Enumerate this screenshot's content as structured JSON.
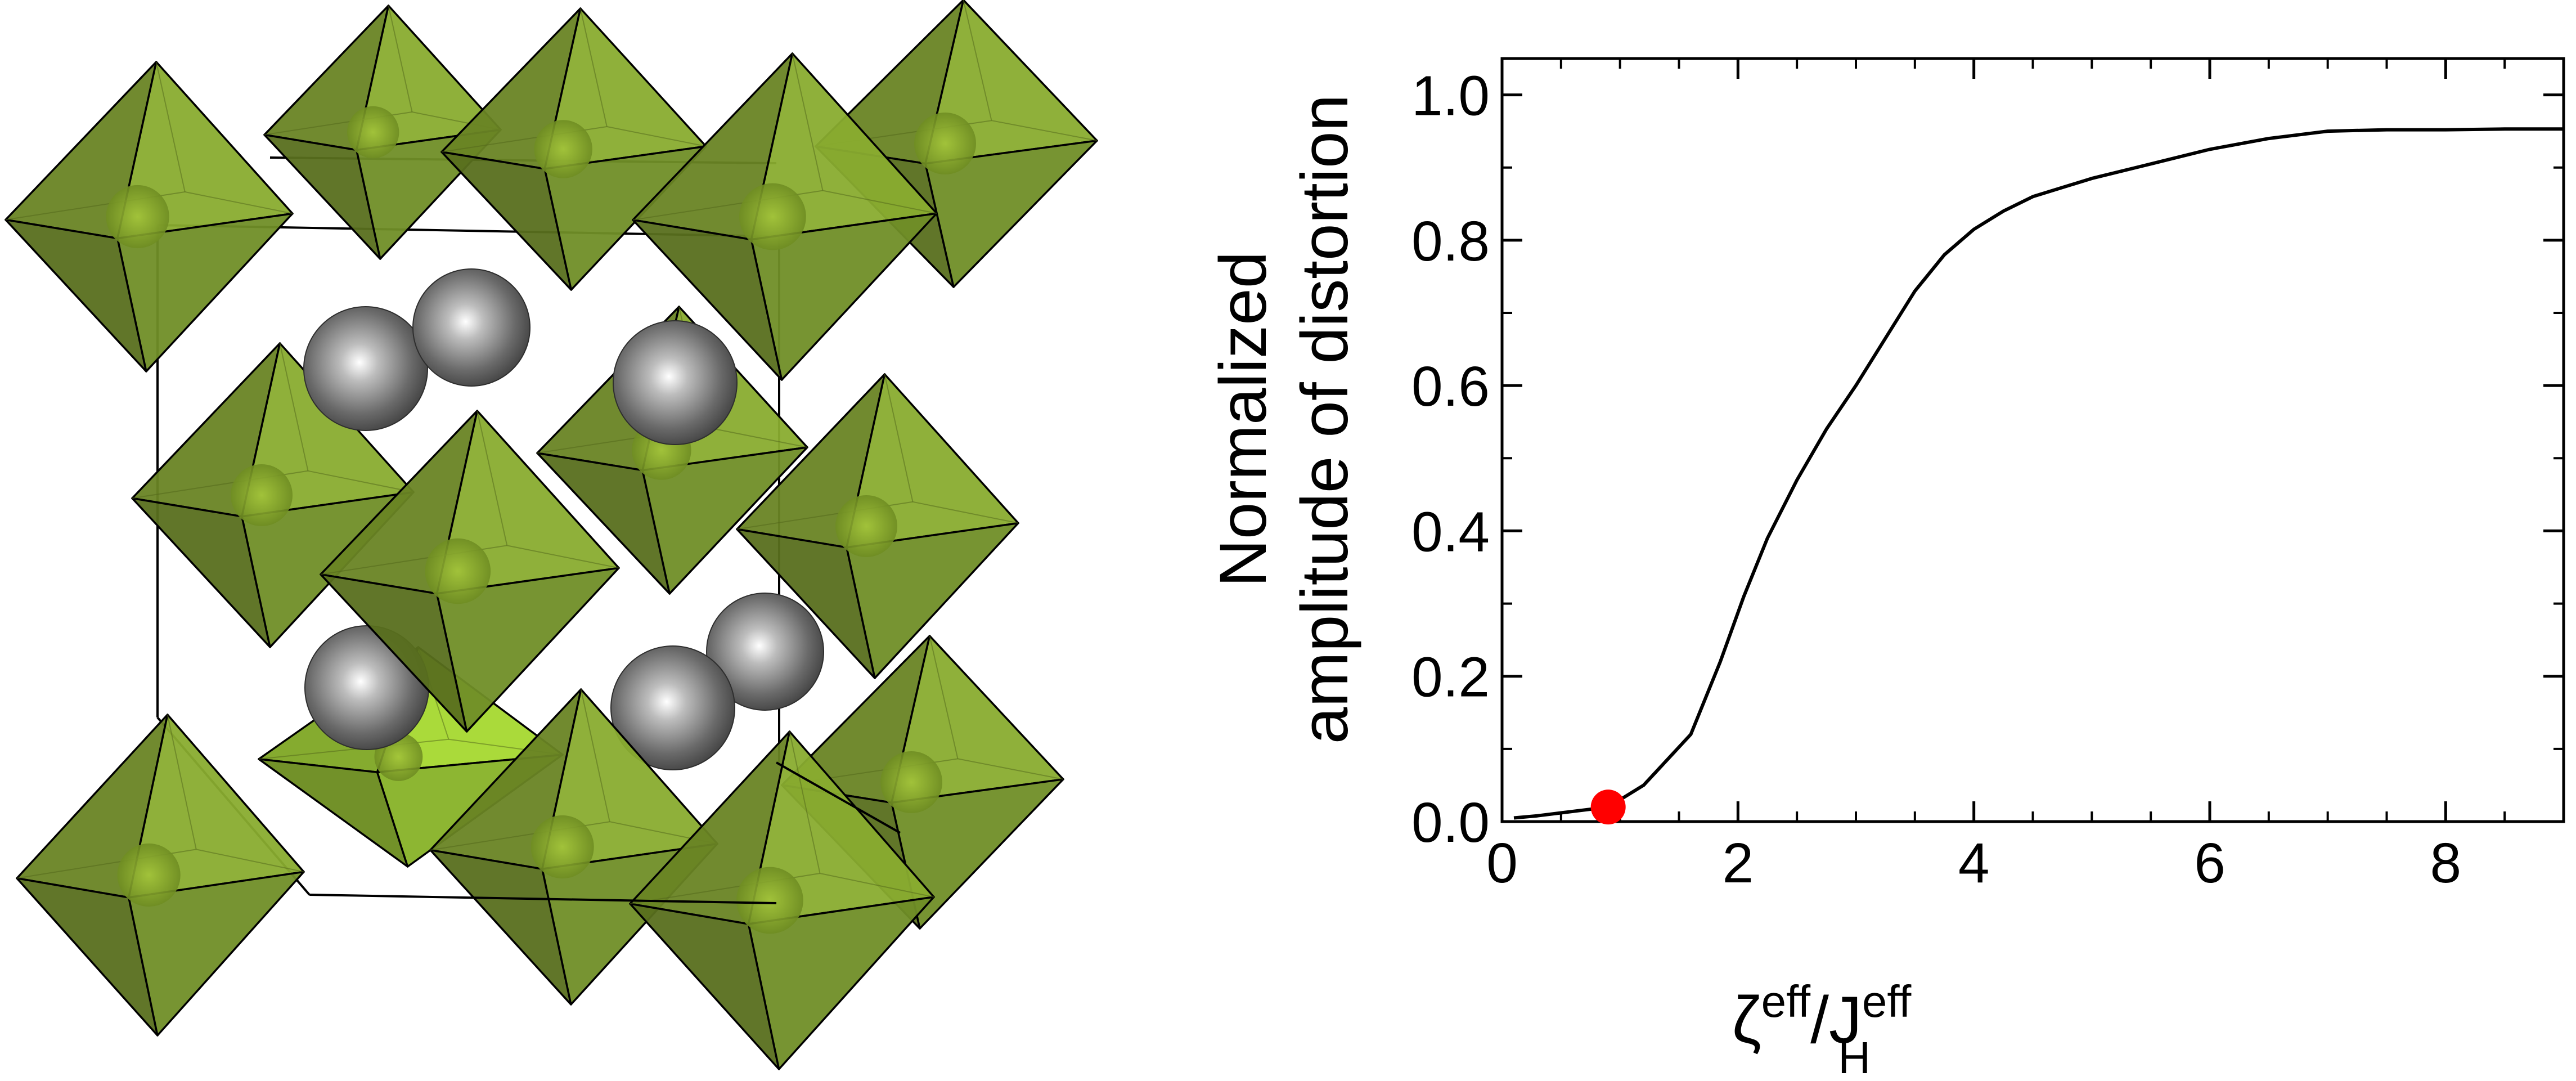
{
  "figure": {
    "structure_panel": {
      "octahedron_color": "#7a9a2a",
      "highlight_octahedron_color": "#93c12a",
      "atom_color": "#5a5a5a"
    }
  },
  "chart_data": {
    "type": "line",
    "title": "",
    "ylabel_lines": [
      "Normalized",
      "amplitude of distortion"
    ],
    "xlabel": {
      "base1": "ζ",
      "sup1": "eff",
      "slash": "/J",
      "sub2": "H",
      "sup2": "eff"
    },
    "xlim": [
      0,
      9
    ],
    "ylim": [
      0,
      1.05
    ],
    "xticks": [
      0,
      2,
      4,
      6,
      8
    ],
    "xtick_labels": [
      "0",
      "2",
      "4",
      "6",
      "8"
    ],
    "yticks": [
      0,
      0.2,
      0.4,
      0.6,
      0.8,
      1.0
    ],
    "ytick_labels": [
      "0.0",
      "0.2",
      "0.4",
      "0.6",
      "0.8",
      "1.0"
    ],
    "x_minor_step": 0.5,
    "y_minor_step": 0.1,
    "grid": false,
    "series": [
      {
        "color": "#000000",
        "x": [
          0.1,
          0.3,
          0.5,
          0.9,
          1.2,
          1.6,
          1.85,
          2.05,
          2.25,
          2.5,
          2.75,
          3.0,
          3.25,
          3.5,
          3.75,
          4.0,
          4.25,
          4.5,
          5.0,
          5.5,
          6.0,
          6.5,
          7.0,
          7.5,
          8.0,
          8.5,
          9.0
        ],
        "y": [
          0.005,
          0.008,
          0.012,
          0.02,
          0.05,
          0.12,
          0.22,
          0.31,
          0.39,
          0.47,
          0.54,
          0.6,
          0.665,
          0.73,
          0.78,
          0.815,
          0.84,
          0.86,
          0.885,
          0.905,
          0.925,
          0.94,
          0.95,
          0.952,
          0.952,
          0.953,
          0.953
        ]
      }
    ],
    "marker": {
      "x": 0.9,
      "y": 0.02,
      "color": "#ff0000"
    }
  }
}
